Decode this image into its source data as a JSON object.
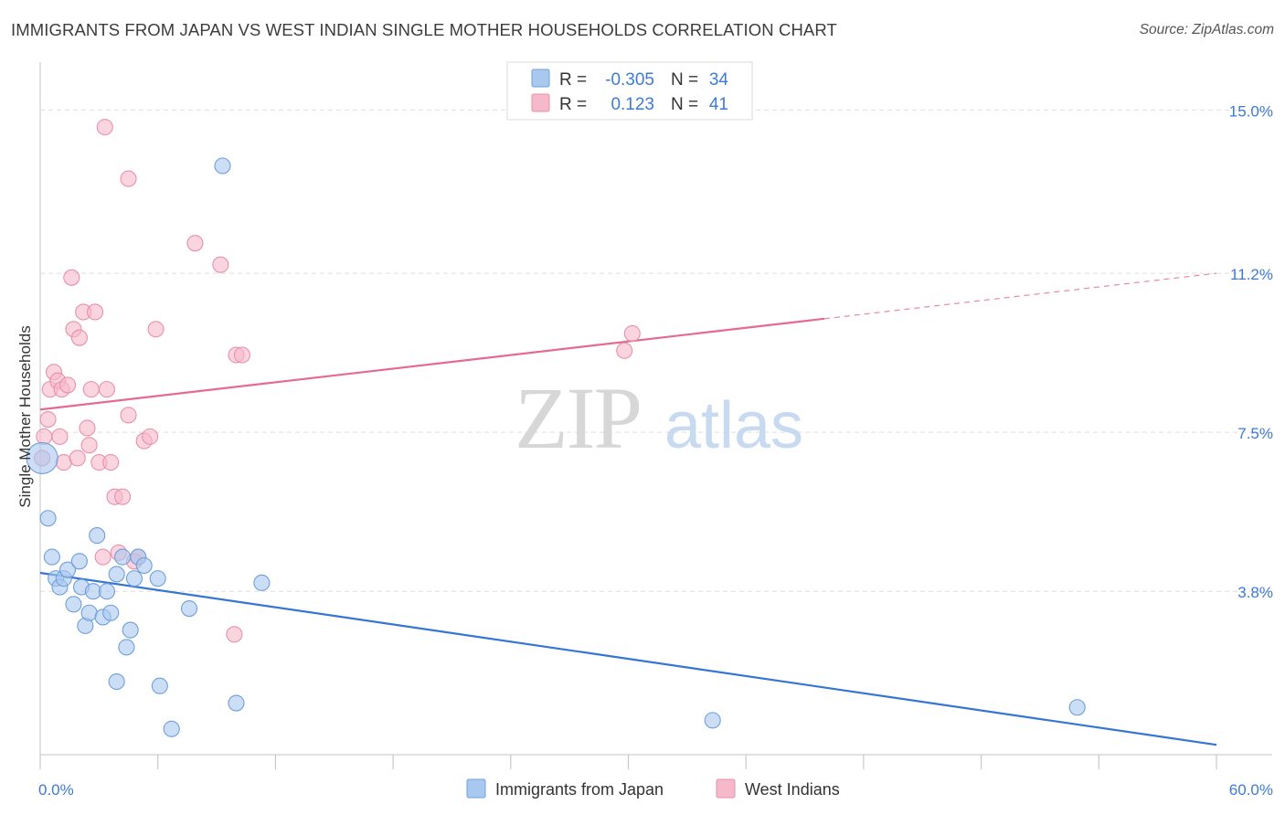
{
  "title": "IMMIGRANTS FROM JAPAN VS WEST INDIAN SINGLE MOTHER HOUSEHOLDS CORRELATION CHART",
  "source": "Source: ZipAtlas.com",
  "watermark": {
    "zip": "ZIP",
    "atlas": "atlas"
  },
  "colors": {
    "japan_fill": "#a9c8f0",
    "japan_stroke": "#6f9fd8",
    "japan_line": "#3575d3",
    "west_fill": "#f6b9cc",
    "west_stroke": "#e890ab",
    "west_line": "#e46a92",
    "tick_text": "#3d7ad6",
    "grid": "#dddddd"
  },
  "stats_box": {
    "rows": [
      {
        "r_label": "R =",
        "r_value": "-0.305",
        "n_label": "N =",
        "n_value": "34"
      },
      {
        "r_label": "R =",
        "r_value": "0.123",
        "n_label": "N =",
        "n_value": "41"
      }
    ]
  },
  "chart_data": {
    "type": "scatter",
    "title": "IMMIGRANTS FROM JAPAN VS WEST INDIAN SINGLE MOTHER HOUSEHOLDS CORRELATION CHART",
    "xlabel": "",
    "ylabel": "Single Mother Households",
    "xlim": [
      0,
      60
    ],
    "ylim": [
      0,
      15.9
    ],
    "x_tick_labels": [
      "0.0%",
      "60.0%"
    ],
    "y_ticks": [
      3.8,
      7.5,
      11.2,
      15.0
    ],
    "y_tick_labels": [
      "3.8%",
      "7.5%",
      "11.2%",
      "15.0%"
    ],
    "grid": true,
    "legend_position": "bottom-center",
    "series": [
      {
        "name": "Immigrants from Japan",
        "points": [
          [
            0.1,
            6.9,
            "large"
          ],
          [
            0.4,
            5.5
          ],
          [
            0.6,
            4.6
          ],
          [
            0.8,
            4.1
          ],
          [
            1.0,
            3.9
          ],
          [
            1.2,
            4.1
          ],
          [
            1.4,
            4.3
          ],
          [
            1.7,
            3.5
          ],
          [
            2.0,
            4.5
          ],
          [
            2.1,
            3.9
          ],
          [
            2.3,
            3.0
          ],
          [
            2.5,
            3.3
          ],
          [
            2.7,
            3.8
          ],
          [
            2.9,
            5.1
          ],
          [
            3.2,
            3.2
          ],
          [
            3.4,
            3.8
          ],
          [
            3.6,
            3.3
          ],
          [
            3.9,
            1.7
          ],
          [
            3.9,
            4.2
          ],
          [
            4.2,
            4.6
          ],
          [
            4.4,
            2.5
          ],
          [
            4.6,
            2.9
          ],
          [
            4.8,
            4.1
          ],
          [
            5.0,
            4.6
          ],
          [
            5.3,
            4.4
          ],
          [
            6.0,
            4.1
          ],
          [
            6.1,
            1.6
          ],
          [
            6.7,
            0.6
          ],
          [
            7.6,
            3.4
          ],
          [
            9.3,
            13.7
          ],
          [
            10.0,
            1.2
          ],
          [
            11.3,
            4.0
          ],
          [
            34.3,
            0.8
          ],
          [
            52.9,
            1.1
          ]
        ],
        "trend": {
          "x": [
            0,
            60
          ],
          "y": [
            4.23,
            0.23
          ]
        }
      },
      {
        "name": "West Indians",
        "points": [
          [
            0.1,
            6.9
          ],
          [
            0.2,
            7.4
          ],
          [
            0.4,
            7.8
          ],
          [
            0.5,
            8.5
          ],
          [
            0.7,
            8.9
          ],
          [
            0.9,
            8.7
          ],
          [
            1.0,
            7.4
          ],
          [
            1.1,
            8.5
          ],
          [
            1.2,
            6.8
          ],
          [
            1.4,
            8.6
          ],
          [
            1.6,
            11.1
          ],
          [
            1.7,
            9.9
          ],
          [
            1.9,
            6.9
          ],
          [
            2.0,
            9.7
          ],
          [
            2.2,
            10.3
          ],
          [
            2.4,
            7.6
          ],
          [
            2.5,
            7.2
          ],
          [
            2.6,
            8.5
          ],
          [
            2.8,
            10.3
          ],
          [
            3.0,
            6.8
          ],
          [
            3.2,
            4.6
          ],
          [
            3.4,
            8.5
          ],
          [
            3.6,
            6.8
          ],
          [
            3.8,
            6.0
          ],
          [
            4.0,
            4.7
          ],
          [
            4.2,
            6.0
          ],
          [
            4.5,
            13.4
          ],
          [
            4.5,
            7.9
          ],
          [
            4.8,
            4.5
          ],
          [
            5.0,
            4.6
          ],
          [
            5.3,
            7.3
          ],
          [
            5.6,
            7.4
          ],
          [
            5.9,
            9.9
          ],
          [
            7.9,
            11.9
          ],
          [
            9.9,
            2.8
          ],
          [
            10.0,
            9.3
          ],
          [
            10.3,
            9.3
          ],
          [
            3.3,
            14.6
          ],
          [
            9.2,
            11.4
          ],
          [
            30.2,
            9.8
          ],
          [
            29.8,
            9.4
          ]
        ],
        "trend": {
          "x": [
            0,
            60
          ],
          "y": [
            8.03,
            11.2
          ],
          "solid_until_x": 40
        }
      }
    ]
  },
  "legend": {
    "items": [
      {
        "label": "Immigrants from Japan"
      },
      {
        "label": "West Indians"
      }
    ]
  }
}
